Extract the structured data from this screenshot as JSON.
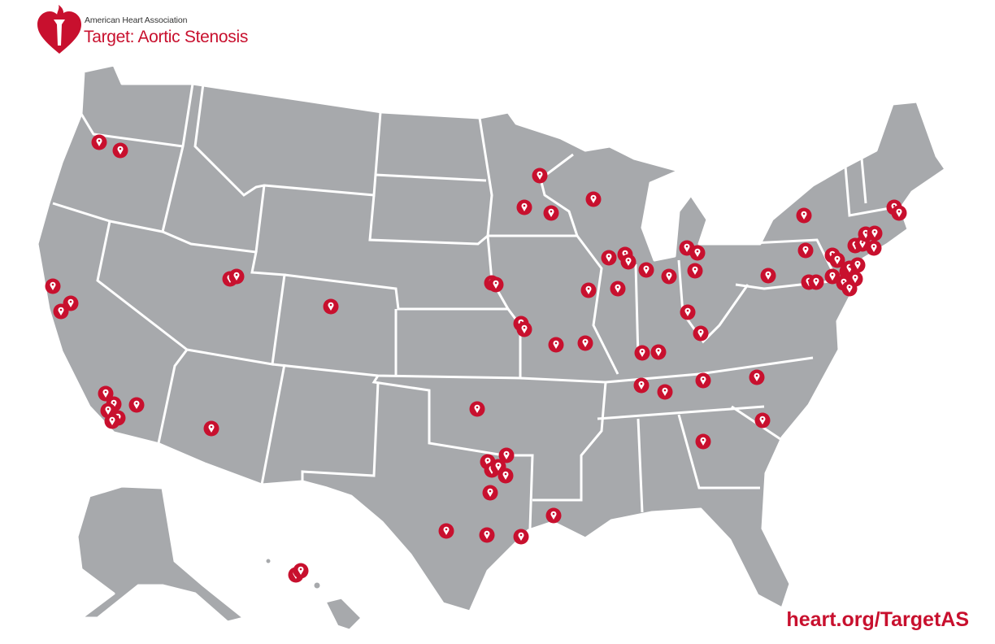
{
  "brand": {
    "organization": "American Heart Association",
    "program": "Target: Aortic Stenosis",
    "url": "heart.org/TargetAS"
  },
  "map": {
    "region": "United States",
    "marker_icon": "map-pin-icon",
    "colors": {
      "land": "#a7a9ac",
      "borders": "#ffffff",
      "marker": "#c8102e",
      "brand_red": "#c8102e"
    }
  }
}
